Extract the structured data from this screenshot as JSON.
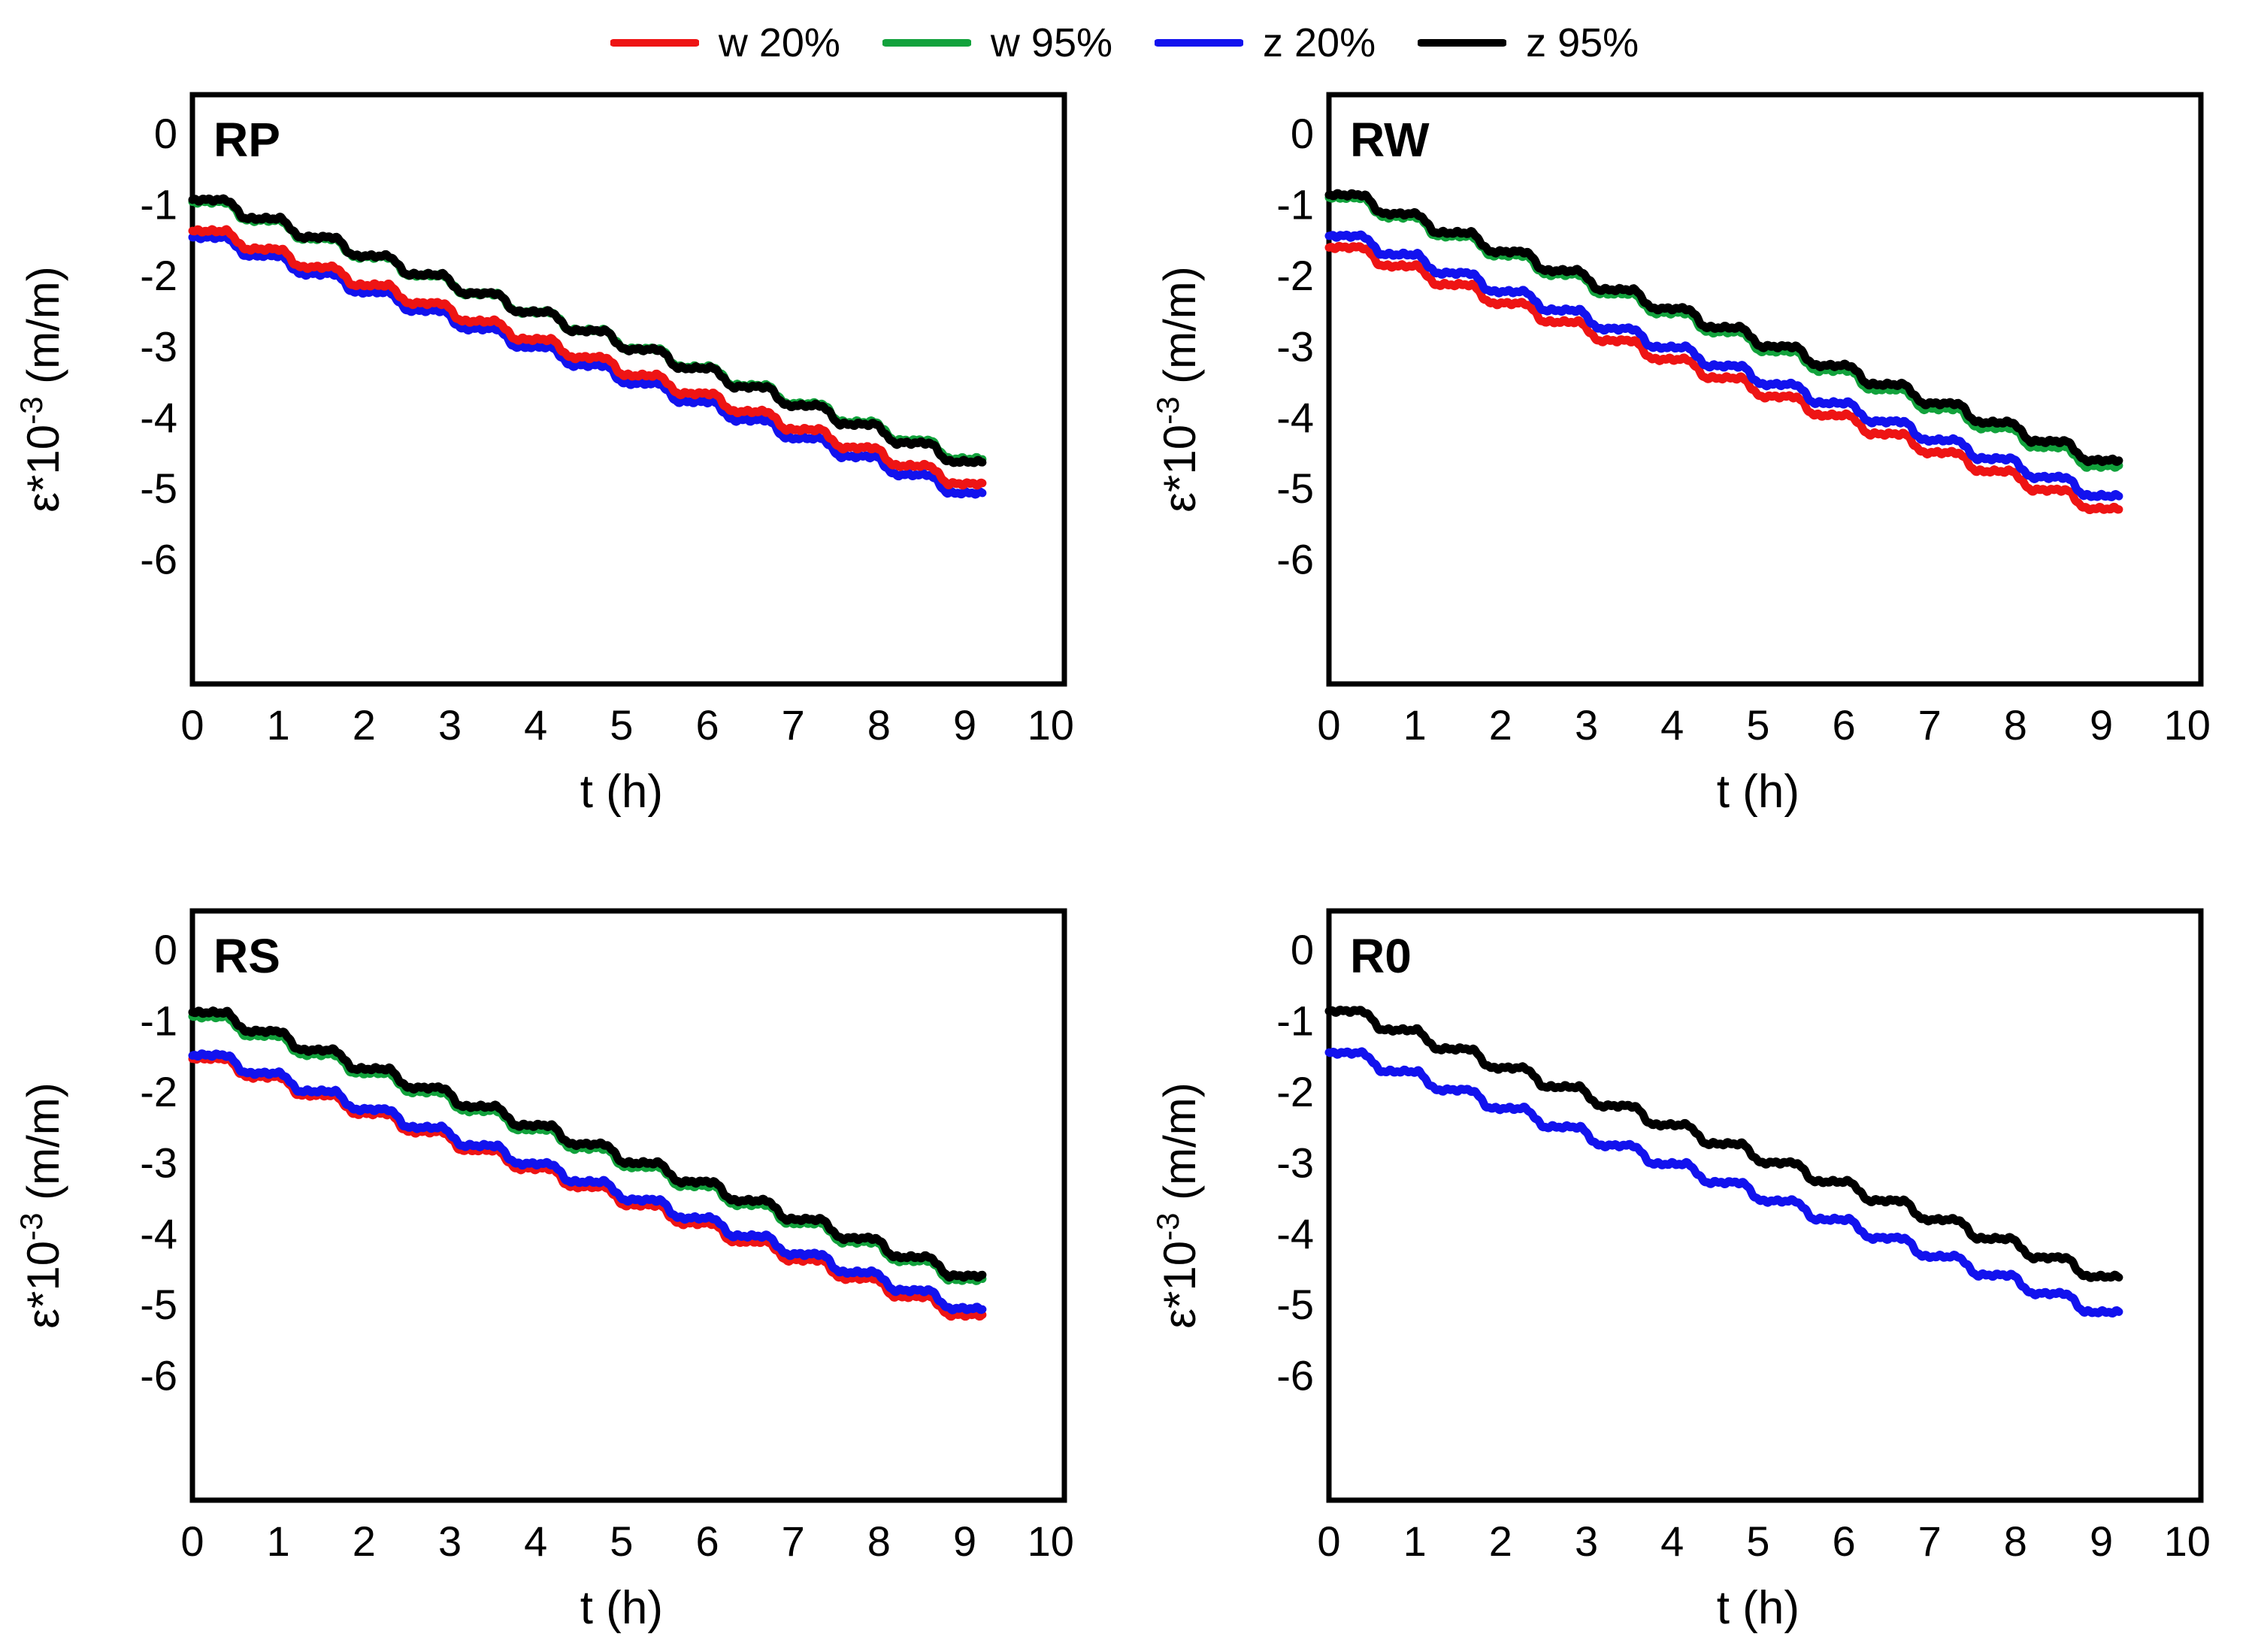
{
  "legend": {
    "items": [
      {
        "key": "w20",
        "label": "w 20%",
        "color": "#ee1414"
      },
      {
        "key": "w95",
        "label": "w 95%",
        "color": "#12a23c"
      },
      {
        "key": "z20",
        "label": "z 20%",
        "color": "#1212ee"
      },
      {
        "key": "z95",
        "label": "z 95%",
        "color": "#000000"
      }
    ]
  },
  "axes": {
    "x_label": "t (h)",
    "y_label_prefix": "ε*10",
    "y_label_sup": "-3",
    "y_label_suffix": " (m/m)",
    "x_range": [
      0,
      10.16
    ],
    "y_range": [
      0.55,
      -7.75
    ],
    "x_ticks": [
      {
        "v": 0,
        "label": "0"
      },
      {
        "v": 1,
        "label": "1"
      },
      {
        "v": 2,
        "label": "2"
      },
      {
        "v": 3,
        "label": "3"
      },
      {
        "v": 4,
        "label": "4"
      },
      {
        "v": 5,
        "label": "5"
      },
      {
        "v": 6,
        "label": "6"
      },
      {
        "v": 7,
        "label": "7"
      },
      {
        "v": 8,
        "label": "8"
      },
      {
        "v": 9,
        "label": "9"
      },
      {
        "v": 10,
        "label": "10"
      }
    ],
    "y_ticks": [
      {
        "v": 0,
        "label": "0"
      },
      {
        "v": -1,
        "label": "-1"
      },
      {
        "v": -2,
        "label": "-2"
      },
      {
        "v": -3,
        "label": "-3"
      },
      {
        "v": -4,
        "label": "-4"
      },
      {
        "v": -5,
        "label": "-5"
      },
      {
        "v": -6,
        "label": "-6"
      }
    ],
    "grid": "off",
    "legend_position": "top-center"
  },
  "step_model": {
    "t_end": 9.21,
    "period": 0.63,
    "plateau_len": 0.39,
    "noise_amp": 0.025
  },
  "chart_data": [
    {
      "type": "line",
      "label": "RP",
      "xlabel": "t (h)",
      "ylabel": "ε*10-3 (m/m)",
      "series": [
        {
          "key": "w95",
          "name": "w 95%",
          "color": "#12a23c",
          "plateaus": [
            -0.96,
            -1.219,
            -1.477,
            -1.736,
            -1.994,
            -2.253,
            -2.511,
            -2.77,
            -3.029,
            -3.287,
            -3.546,
            -3.804,
            -4.063,
            -4.321,
            -4.58
          ]
        },
        {
          "key": "z95",
          "name": "z 95%",
          "color": "#000000",
          "plateaus": [
            -0.93,
            -1.194,
            -1.457,
            -1.721,
            -1.984,
            -2.248,
            -2.511,
            -2.775,
            -3.039,
            -3.302,
            -3.566,
            -3.829,
            -4.093,
            -4.356,
            -4.62
          ]
        },
        {
          "key": "z20",
          "name": "z 20%",
          "color": "#1212ee",
          "plateaus": [
            -1.46,
            -1.717,
            -1.974,
            -2.231,
            -2.489,
            -2.746,
            -3.003,
            -3.26,
            -3.517,
            -3.774,
            -4.031,
            -4.289,
            -4.546,
            -4.803,
            -5.06
          ]
        },
        {
          "key": "w20",
          "name": "w 20%",
          "color": "#ee1414",
          "plateaus": [
            -1.37,
            -1.624,
            -1.879,
            -2.133,
            -2.387,
            -2.641,
            -2.896,
            -3.15,
            -3.404,
            -3.659,
            -3.913,
            -4.167,
            -4.421,
            -4.676,
            -4.93
          ]
        }
      ]
    },
    {
      "type": "line",
      "label": "RW",
      "xlabel": "t (h)",
      "ylabel": "ε*10-3 (m/m)",
      "series": [
        {
          "key": "w95",
          "name": "w 95%",
          "color": "#12a23c",
          "plateaus": [
            -0.9,
            -1.17,
            -1.44,
            -1.71,
            -1.98,
            -2.25,
            -2.52,
            -2.79,
            -3.06,
            -3.33,
            -3.6,
            -3.87,
            -4.14,
            -4.41,
            -4.68
          ]
        },
        {
          "key": "z95",
          "name": "z 95%",
          "color": "#000000",
          "plateaus": [
            -0.86,
            -1.127,
            -1.394,
            -1.661,
            -1.929,
            -2.196,
            -2.463,
            -2.73,
            -2.997,
            -3.264,
            -3.531,
            -3.799,
            -4.066,
            -4.333,
            -4.6
          ]
        },
        {
          "key": "w20",
          "name": "w 20%",
          "color": "#ee1414",
          "plateaus": [
            -1.6,
            -1.863,
            -2.126,
            -2.389,
            -2.651,
            -2.914,
            -3.177,
            -3.44,
            -3.703,
            -3.966,
            -4.229,
            -4.491,
            -4.754,
            -5.017,
            -5.28
          ]
        },
        {
          "key": "z20",
          "name": "z 20%",
          "color": "#1212ee",
          "plateaus": [
            -1.44,
            -1.701,
            -1.963,
            -2.224,
            -2.486,
            -2.747,
            -3.009,
            -3.27,
            -3.531,
            -3.793,
            -4.054,
            -4.316,
            -4.577,
            -4.839,
            -5.1
          ]
        }
      ]
    },
    {
      "type": "line",
      "label": "RS",
      "xlabel": "t (h)",
      "ylabel": "ε*10-3 (m/m)",
      "series": [
        {
          "key": "w95",
          "name": "w 95%",
          "color": "#12a23c",
          "plateaus": [
            -0.94,
            -1.204,
            -1.469,
            -1.733,
            -1.997,
            -2.261,
            -2.526,
            -2.79,
            -3.054,
            -3.319,
            -3.583,
            -3.847,
            -4.111,
            -4.376,
            -4.64
          ]
        },
        {
          "key": "z95",
          "name": "z 95%",
          "color": "#000000",
          "plateaus": [
            -0.88,
            -1.145,
            -1.41,
            -1.675,
            -1.94,
            -2.205,
            -2.47,
            -2.735,
            -3.0,
            -3.265,
            -3.53,
            -3.795,
            -4.06,
            -4.325,
            -4.59
          ]
        },
        {
          "key": "w20",
          "name": "w 20%",
          "color": "#ee1414",
          "plateaus": [
            -1.53,
            -1.788,
            -2.046,
            -2.304,
            -2.561,
            -2.819,
            -3.077,
            -3.335,
            -3.593,
            -3.851,
            -4.109,
            -4.366,
            -4.624,
            -4.882,
            -5.14
          ]
        },
        {
          "key": "z20",
          "name": "z 20%",
          "color": "#1212ee",
          "plateaus": [
            -1.48,
            -1.735,
            -1.99,
            -2.245,
            -2.5,
            -2.755,
            -3.01,
            -3.265,
            -3.52,
            -3.775,
            -4.03,
            -4.285,
            -4.54,
            -4.795,
            -5.05
          ]
        }
      ]
    },
    {
      "type": "line",
      "label": "R0",
      "xlabel": "t (h)",
      "ylabel": "ε*10-3 (m/m)",
      "series": [
        {
          "key": "z95",
          "name": "z 95%",
          "color": "#000000",
          "plateaus": [
            -0.86,
            -1.127,
            -1.394,
            -1.661,
            -1.929,
            -2.196,
            -2.463,
            -2.73,
            -2.997,
            -3.264,
            -3.531,
            -3.799,
            -4.066,
            -4.333,
            -4.6
          ]
        },
        {
          "key": "z20",
          "name": "z 20%",
          "color": "#1212ee",
          "plateaus": [
            -1.45,
            -1.711,
            -1.971,
            -2.232,
            -2.493,
            -2.754,
            -3.014,
            -3.275,
            -3.536,
            -3.796,
            -4.057,
            -4.318,
            -4.579,
            -4.839,
            -5.1
          ]
        }
      ]
    }
  ]
}
